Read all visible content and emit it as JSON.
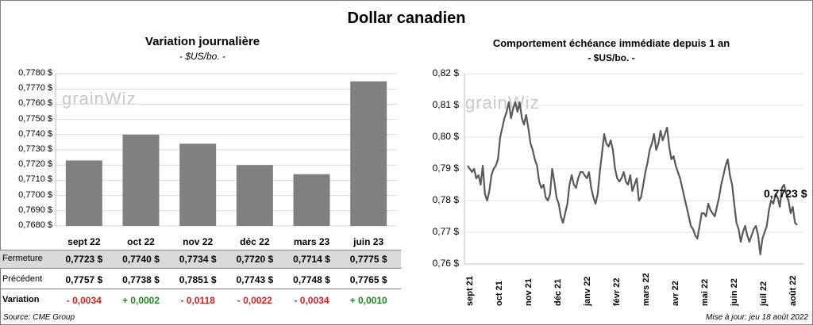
{
  "title": "Dollar canadien",
  "watermark": "grainWiz",
  "left": {
    "title": "Variation  journalière",
    "subtitle": "- $US/bo. -"
  },
  "right": {
    "title": "Comportement échéance immédiate depuis 1 an",
    "subtitle": "- $US/bo. -",
    "last_label": "0,7723 $"
  },
  "table": {
    "row_labels": [
      "Fermeture",
      "Précédent",
      "Variation"
    ],
    "fermeture": [
      "0,7723  $",
      "0,7740  $",
      "0,7734  $",
      "0,7720  $",
      "0,7714  $",
      "0,7775  $"
    ],
    "precedent": [
      "0,7757  $",
      "0,7738  $",
      "0,7851  $",
      "0,7743  $",
      "0,7748  $",
      "0,7765  $"
    ],
    "variation": [
      "- 0,0034",
      "+ 0,0002",
      "- 0,0118",
      "- 0,0022",
      "- 0,0034",
      "+ 0,0010"
    ],
    "variation_sign": [
      "neg",
      "pos",
      "neg",
      "neg",
      "neg",
      "pos"
    ]
  },
  "footer": {
    "source": "Source: CME Group",
    "updated": "Mise à jour: jeu 18 août 2022"
  },
  "chart_data": [
    {
      "type": "bar",
      "categories": [
        "sept 22",
        "oct 22",
        "nov 22",
        "déc 22",
        "mars 23",
        "juin 23"
      ],
      "values": [
        0.7723,
        0.774,
        0.7734,
        0.772,
        0.7714,
        0.7775
      ],
      "ylim": [
        0.768,
        0.778
      ],
      "yticks": [
        "0,7680 $",
        "0,7690 $",
        "0,7700 $",
        "0,7710 $",
        "0,7720 $",
        "0,7730 $",
        "0,7740 $",
        "0,7750 $",
        "0,7760 $",
        "0,7770 $",
        "0,7780 $"
      ],
      "grid": true,
      "color": "#808080"
    },
    {
      "type": "line",
      "ylim": [
        0.76,
        0.82
      ],
      "yticks": [
        "0,76 $",
        "0,77 $",
        "0,78 $",
        "0,79 $",
        "0,80 $",
        "0,81 $",
        "0,82 $"
      ],
      "xticks": [
        "sept 21",
        "oct 21",
        "nov 21",
        "déc 21",
        "janv 22",
        "févr 22",
        "mars 22",
        "avr 22",
        "mai 22",
        "juin 22",
        "juil 22",
        "août 22"
      ],
      "grid": true,
      "color": "#595959",
      "values": [
        0.791,
        0.79,
        0.789,
        0.79,
        0.787,
        0.788,
        0.785,
        0.791,
        0.782,
        0.78,
        0.783,
        0.788,
        0.79,
        0.791,
        0.793,
        0.8,
        0.803,
        0.806,
        0.808,
        0.811,
        0.806,
        0.809,
        0.811,
        0.808,
        0.811,
        0.806,
        0.804,
        0.807,
        0.803,
        0.798,
        0.796,
        0.793,
        0.791,
        0.786,
        0.784,
        0.785,
        0.781,
        0.78,
        0.782,
        0.79,
        0.786,
        0.781,
        0.779,
        0.775,
        0.773,
        0.776,
        0.779,
        0.785,
        0.788,
        0.785,
        0.784,
        0.787,
        0.789,
        0.789,
        0.788,
        0.787,
        0.789,
        0.784,
        0.781,
        0.779,
        0.782,
        0.789,
        0.795,
        0.801,
        0.798,
        0.797,
        0.799,
        0.796,
        0.79,
        0.787,
        0.786,
        0.787,
        0.789,
        0.786,
        0.785,
        0.788,
        0.783,
        0.785,
        0.787,
        0.78,
        0.781,
        0.785,
        0.789,
        0.792,
        0.796,
        0.798,
        0.801,
        0.796,
        0.798,
        0.802,
        0.799,
        0.801,
        0.803,
        0.797,
        0.793,
        0.794,
        0.791,
        0.789,
        0.787,
        0.784,
        0.781,
        0.778,
        0.775,
        0.772,
        0.771,
        0.769,
        0.768,
        0.772,
        0.776,
        0.776,
        0.775,
        0.779,
        0.777,
        0.776,
        0.775,
        0.778,
        0.781,
        0.785,
        0.788,
        0.791,
        0.793,
        0.788,
        0.785,
        0.779,
        0.773,
        0.771,
        0.767,
        0.77,
        0.772,
        0.769,
        0.767,
        0.769,
        0.771,
        0.772,
        0.769,
        0.763,
        0.768,
        0.77,
        0.772,
        0.777,
        0.78,
        0.779,
        0.782,
        0.781,
        0.778,
        0.784,
        0.785,
        0.782,
        0.78,
        0.776,
        0.778,
        0.773,
        0.7723
      ]
    }
  ]
}
